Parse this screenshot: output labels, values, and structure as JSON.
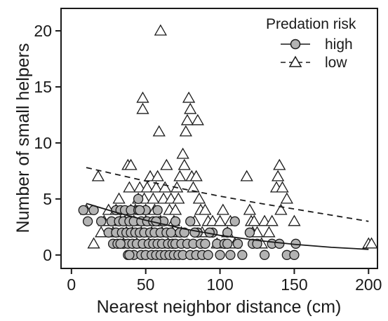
{
  "chart_data": {
    "type": "scatter",
    "title": "",
    "xlabel": "Nearest neighbor distance (cm)",
    "ylabel": "Number of small helpers",
    "xlim": [
      -7,
      206
    ],
    "ylim": [
      -1.2,
      22
    ],
    "xticks": [
      "0",
      "50",
      "100",
      "150",
      "200"
    ],
    "yticks": [
      "0",
      "5",
      "10",
      "15",
      "20"
    ],
    "legend": {
      "title": "Predation risk",
      "position": "top-right",
      "entries": [
        {
          "label": "high",
          "marker": "circle",
          "line": "solid"
        },
        {
          "label": "low",
          "marker": "triangle",
          "line": "dashed"
        }
      ]
    },
    "series": [
      {
        "name": "high",
        "marker": "circle",
        "marker_fill": "#b3b3b3",
        "points": [
          [
            8,
            4
          ],
          [
            11,
            3
          ],
          [
            15,
            4
          ],
          [
            20,
            3
          ],
          [
            25,
            2
          ],
          [
            27,
            3
          ],
          [
            28,
            1
          ],
          [
            30,
            4
          ],
          [
            30,
            2
          ],
          [
            31,
            1
          ],
          [
            32,
            3
          ],
          [
            33,
            4
          ],
          [
            34,
            2
          ],
          [
            35,
            1
          ],
          [
            35,
            3
          ],
          [
            36,
            4
          ],
          [
            37,
            2
          ],
          [
            38,
            0
          ],
          [
            38,
            1
          ],
          [
            39,
            3
          ],
          [
            40,
            4
          ],
          [
            40,
            2
          ],
          [
            41,
            1
          ],
          [
            42,
            0
          ],
          [
            42,
            3
          ],
          [
            43,
            2
          ],
          [
            44,
            1
          ],
          [
            45,
            4
          ],
          [
            45,
            5
          ],
          [
            46,
            2
          ],
          [
            47,
            0
          ],
          [
            47,
            3
          ],
          [
            48,
            1
          ],
          [
            49,
            2
          ],
          [
            50,
            4
          ],
          [
            50,
            0
          ],
          [
            51,
            3
          ],
          [
            52,
            1
          ],
          [
            53,
            2
          ],
          [
            54,
            0
          ],
          [
            55,
            3
          ],
          [
            55,
            1
          ],
          [
            56,
            2
          ],
          [
            57,
            0
          ],
          [
            58,
            4
          ],
          [
            58,
            1
          ],
          [
            59,
            3
          ],
          [
            60,
            0
          ],
          [
            60,
            2
          ],
          [
            61,
            1
          ],
          [
            62,
            3
          ],
          [
            63,
            0
          ],
          [
            64,
            2
          ],
          [
            65,
            1
          ],
          [
            66,
            0
          ],
          [
            67,
            2
          ],
          [
            68,
            1
          ],
          [
            69,
            0
          ],
          [
            70,
            3
          ],
          [
            70,
            1
          ],
          [
            72,
            0
          ],
          [
            73,
            2
          ],
          [
            74,
            1
          ],
          [
            75,
            0
          ],
          [
            76,
            2
          ],
          [
            78,
            1
          ],
          [
            80,
            0
          ],
          [
            80,
            3
          ],
          [
            82,
            1
          ],
          [
            84,
            0
          ],
          [
            85,
            2
          ],
          [
            87,
            1
          ],
          [
            88,
            0
          ],
          [
            90,
            1
          ],
          [
            92,
            0
          ],
          [
            95,
            2
          ],
          [
            98,
            1
          ],
          [
            100,
            0
          ],
          [
            103,
            1
          ],
          [
            105,
            2
          ],
          [
            107,
            0
          ],
          [
            110,
            3
          ],
          [
            112,
            1
          ],
          [
            115,
            0
          ],
          [
            120,
            2
          ],
          [
            122,
            1
          ],
          [
            125,
            1
          ],
          [
            130,
            0
          ],
          [
            135,
            1
          ],
          [
            140,
            1
          ],
          [
            145,
            0
          ],
          [
            150,
            0
          ],
          [
            151,
            1
          ],
          [
            105,
            1
          ],
          [
            93,
            2
          ],
          [
            83,
            2
          ],
          [
            57,
            3
          ],
          [
            46,
            4
          ],
          [
            39,
            0
          ],
          [
            33,
            1
          ]
        ],
        "fit": [
          [
            10,
            4.6
          ],
          [
            30,
            3.8
          ],
          [
            50,
            3.1
          ],
          [
            75,
            2.35
          ],
          [
            100,
            1.75
          ],
          [
            125,
            1.3
          ],
          [
            150,
            0.95
          ],
          [
            175,
            0.68
          ],
          [
            200,
            0.5
          ]
        ]
      },
      {
        "name": "low",
        "marker": "triangle",
        "marker_fill": "#ffffff",
        "points": [
          [
            10,
            4
          ],
          [
            15,
            1
          ],
          [
            18,
            7
          ],
          [
            20,
            2
          ],
          [
            22,
            3
          ],
          [
            25,
            4
          ],
          [
            28,
            2
          ],
          [
            30,
            4
          ],
          [
            32,
            5
          ],
          [
            33,
            3
          ],
          [
            35,
            1
          ],
          [
            36,
            3
          ],
          [
            37,
            2
          ],
          [
            38,
            8
          ],
          [
            39,
            6
          ],
          [
            40,
            8
          ],
          [
            40,
            4
          ],
          [
            41,
            2
          ],
          [
            42,
            3
          ],
          [
            43,
            4
          ],
          [
            44,
            1
          ],
          [
            45,
            5
          ],
          [
            46,
            6
          ],
          [
            47,
            2
          ],
          [
            48,
            14
          ],
          [
            48,
            13
          ],
          [
            49,
            5
          ],
          [
            50,
            4
          ],
          [
            50,
            3
          ],
          [
            51,
            6
          ],
          [
            52,
            1
          ],
          [
            53,
            7
          ],
          [
            54,
            2
          ],
          [
            55,
            5
          ],
          [
            56,
            4
          ],
          [
            57,
            6
          ],
          [
            58,
            7
          ],
          [
            59,
            11
          ],
          [
            60,
            20
          ],
          [
            60,
            3
          ],
          [
            61,
            2
          ],
          [
            62,
            5
          ],
          [
            63,
            6
          ],
          [
            64,
            8
          ],
          [
            65,
            1
          ],
          [
            66,
            4
          ],
          [
            67,
            5
          ],
          [
            68,
            2
          ],
          [
            69,
            3
          ],
          [
            70,
            4
          ],
          [
            71,
            6
          ],
          [
            72,
            5
          ],
          [
            73,
            7
          ],
          [
            74,
            2
          ],
          [
            75,
            9
          ],
          [
            76,
            8
          ],
          [
            77,
            11
          ],
          [
            78,
            12
          ],
          [
            79,
            14
          ],
          [
            80,
            13
          ],
          [
            81,
            7
          ],
          [
            82,
            6
          ],
          [
            83,
            3
          ],
          [
            84,
            7
          ],
          [
            85,
            12
          ],
          [
            86,
            5
          ],
          [
            87,
            4
          ],
          [
            88,
            2
          ],
          [
            90,
            4
          ],
          [
            92,
            3
          ],
          [
            95,
            3
          ],
          [
            98,
            1
          ],
          [
            100,
            3
          ],
          [
            102,
            4
          ],
          [
            105,
            2
          ],
          [
            107,
            3
          ],
          [
            110,
            1
          ],
          [
            118,
            7
          ],
          [
            120,
            4
          ],
          [
            121,
            3
          ],
          [
            122,
            2
          ],
          [
            123,
            3
          ],
          [
            125,
            2
          ],
          [
            128,
            1
          ],
          [
            130,
            3
          ],
          [
            133,
            2
          ],
          [
            135,
            3
          ],
          [
            138,
            6
          ],
          [
            139,
            7
          ],
          [
            140,
            8
          ],
          [
            141,
            4
          ],
          [
            142,
            6
          ],
          [
            145,
            5
          ],
          [
            150,
            3
          ],
          [
            200,
            1
          ],
          [
            202,
            1
          ]
        ],
        "fit": [
          [
            10,
            7.8
          ],
          [
            30,
            7.2
          ],
          [
            50,
            6.6
          ],
          [
            75,
            5.9
          ],
          [
            100,
            5.25
          ],
          [
            125,
            4.65
          ],
          [
            150,
            4.1
          ],
          [
            175,
            3.55
          ],
          [
            200,
            3.0
          ]
        ]
      }
    ]
  }
}
